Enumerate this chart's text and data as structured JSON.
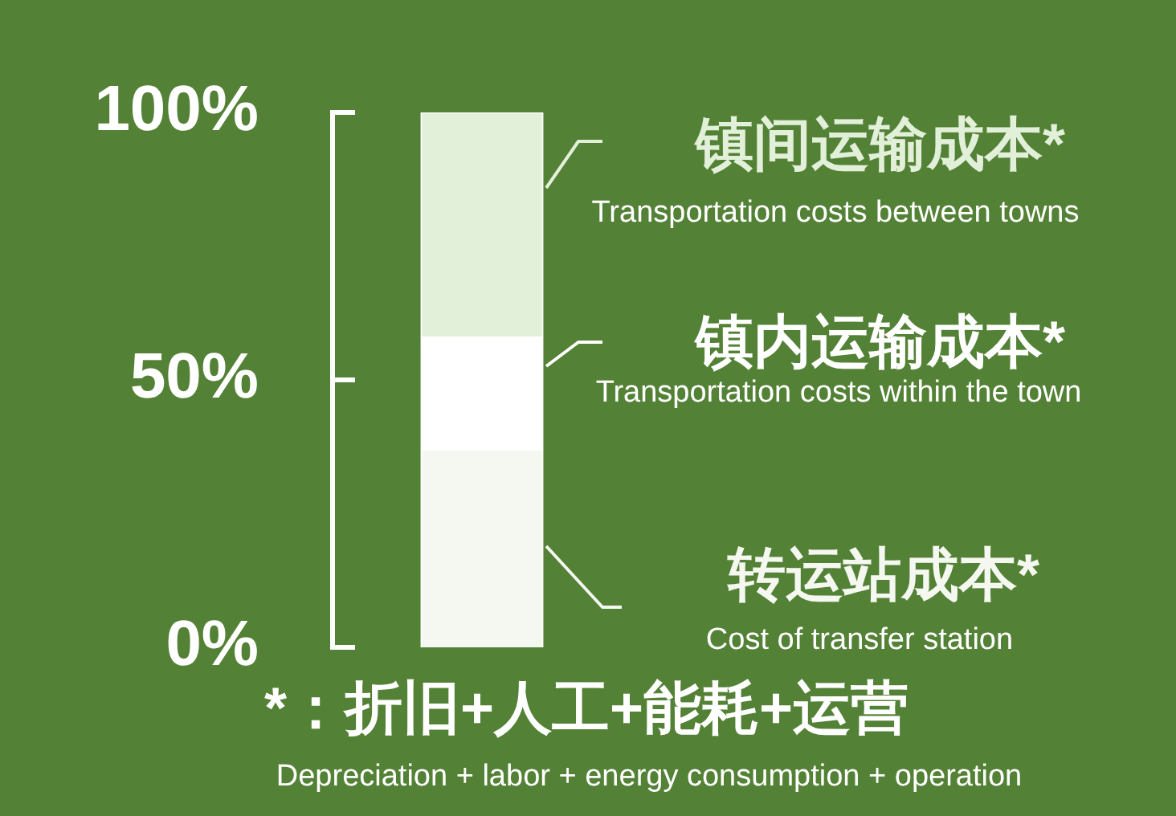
{
  "chart_data": {
    "type": "bar",
    "stacked": true,
    "categories": [
      null
    ],
    "series": [
      {
        "name": "转运站成本*",
        "color": "#f4f8f0",
        "values": [
          37
        ]
      },
      {
        "name": "镇内运输成本*",
        "color": "#ffffff",
        "values": [
          21
        ]
      },
      {
        "name": "镇间运输成本*",
        "color": "#e2efd9",
        "values": [
          42
        ]
      }
    ],
    "ylim": [
      0,
      100
    ],
    "yticks": [
      {
        "value": 0,
        "label": "0%"
      },
      {
        "value": 50,
        "label": "50%"
      },
      {
        "value": 100,
        "label": "100%"
      }
    ],
    "annotations": [
      "Cost of transfer station",
      "Transportation costs within the town",
      "Transportation costs between towns",
      "*：折旧+人工+能耗+运营",
      "Depreciation + labor + energy consumption + operation"
    ],
    "legend": "right",
    "grid": false
  }
}
